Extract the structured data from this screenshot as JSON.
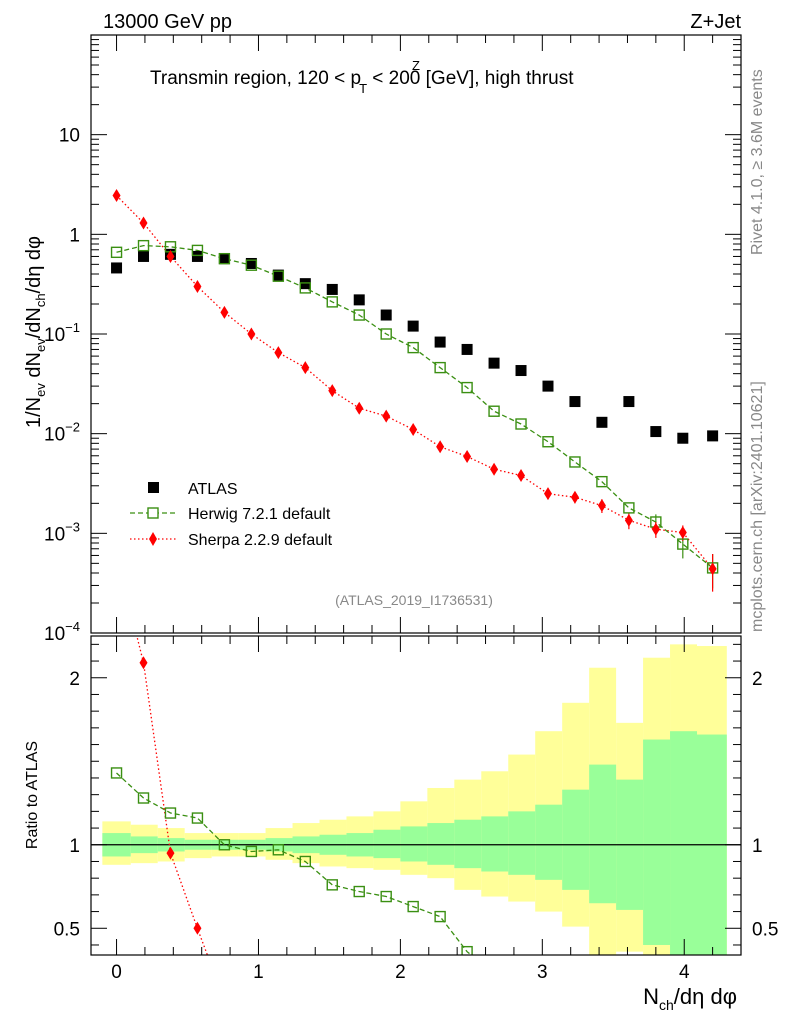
{
  "header": {
    "left": "13000 GeV pp",
    "right": "Z+Jet"
  },
  "side_labels": {
    "upper": "Rivet 4.1.0, ≥ 3.6M events",
    "lower": "mcplots.cern.ch [arXiv:2401.10621]"
  },
  "reference": "(ATLAS_2019_I1736531)",
  "colors": {
    "data": "#000000",
    "herwig": "#3a8f12",
    "sherpa": "#ff0000",
    "band_inner": "#99ff99",
    "band_outer": "#ffff99"
  },
  "chart_data": [
    {
      "type": "scatter",
      "panel": "main",
      "title_parts": {
        "pre": "Transmin region, 120 < p",
        "sup": "Z",
        "sub": "T",
        "post": " < 200 [GeV], high thrust"
      },
      "ylabel": "1/N_ev dN_ev/dN_ch/dη dφ",
      "yscale": "log",
      "ylim": [
        0.0001,
        100
      ],
      "xlim": [
        -0.18,
        4.4
      ],
      "yticks": [
        {
          "v": 10,
          "base": "10",
          "exp": ""
        },
        {
          "v": 1,
          "base": "1",
          "exp": ""
        },
        {
          "v": 0.1,
          "base": "10",
          "exp": "−1"
        },
        {
          "v": 0.01,
          "base": "10",
          "exp": "−2"
        },
        {
          "v": 0.001,
          "base": "10",
          "exp": "−3"
        },
        {
          "v": 0.0001,
          "base": "10",
          "exp": "−4"
        }
      ],
      "x": [
        0.0,
        0.19,
        0.38,
        0.57,
        0.76,
        0.95,
        1.14,
        1.33,
        1.52,
        1.71,
        1.9,
        2.09,
        2.28,
        2.47,
        2.66,
        2.85,
        3.04,
        3.23,
        3.42,
        3.61,
        3.8,
        3.99,
        4.2
      ],
      "series": [
        {
          "name": "ATLAS",
          "marker": "square-filled",
          "values": [
            0.46,
            0.6,
            0.63,
            0.6,
            0.57,
            0.51,
            0.39,
            0.32,
            0.28,
            0.22,
            0.155,
            0.12,
            0.083,
            0.07,
            0.051,
            0.043,
            0.03,
            0.021,
            0.013,
            0.021,
            0.0105,
            0.009,
            0.0095
          ]
        },
        {
          "name": "Herwig 7.2.1 default",
          "marker": "square-open",
          "line": "dashed",
          "values": [
            0.66,
            0.77,
            0.75,
            0.69,
            0.57,
            0.49,
            0.38,
            0.29,
            0.21,
            0.155,
            0.1,
            0.073,
            0.046,
            0.029,
            0.0168,
            0.0125,
            0.0083,
            0.0052,
            0.0033,
            0.0018,
            0.0013,
            0.00078,
            0.00045
          ],
          "errors": [
            0,
            0,
            0,
            0,
            0,
            0,
            0,
            0,
            0,
            0,
            0,
            0,
            0,
            0,
            0,
            0,
            0,
            0,
            0,
            0,
            0.00025,
            0.00022,
            0.00017
          ]
        },
        {
          "name": "Sherpa 2.2.9 default",
          "marker": "diamond",
          "line": "dotted",
          "values": [
            2.45,
            1.3,
            0.6,
            0.3,
            0.165,
            0.1,
            0.065,
            0.046,
            0.027,
            0.018,
            0.015,
            0.011,
            0.0074,
            0.0059,
            0.0044,
            0.0038,
            0.0025,
            0.0023,
            0.0019,
            0.00135,
            0.0011,
            0.00102,
            0.00044
          ],
          "errors": [
            0,
            0,
            0,
            0,
            0,
            0,
            0,
            0,
            0,
            0,
            0,
            0,
            0,
            0,
            0,
            0,
            0.0003,
            0.0003,
            0.0003,
            0.00025,
            0.0002,
            0.00018,
            0.00018
          ]
        }
      ]
    },
    {
      "type": "scatter",
      "panel": "ratio",
      "ylabel": "Ratio to ATLAS",
      "xlabel": "N_ch/dη dφ",
      "ylim": [
        0.34,
        2.25
      ],
      "xticks": [
        0,
        1,
        2,
        3,
        4
      ],
      "yticks": [
        0.5,
        1,
        2
      ],
      "bin_edges": [
        -0.1,
        0.1,
        0.29,
        0.48,
        0.67,
        0.86,
        1.05,
        1.24,
        1.43,
        1.62,
        1.81,
        2.0,
        2.19,
        2.38,
        2.57,
        2.76,
        2.95,
        3.14,
        3.33,
        3.52,
        3.71,
        3.9,
        4.09,
        4.3
      ],
      "band_inner": {
        "low": [
          0.93,
          0.95,
          0.96,
          0.97,
          0.97,
          0.97,
          0.96,
          0.95,
          0.94,
          0.93,
          0.92,
          0.9,
          0.88,
          0.86,
          0.84,
          0.82,
          0.79,
          0.73,
          0.65,
          0.61,
          0.4,
          0.34,
          0.34
        ],
        "high": [
          1.07,
          1.05,
          1.04,
          1.03,
          1.03,
          1.03,
          1.04,
          1.05,
          1.06,
          1.07,
          1.09,
          1.11,
          1.13,
          1.15,
          1.17,
          1.2,
          1.24,
          1.33,
          1.48,
          1.39,
          1.63,
          1.68,
          1.66
        ]
      },
      "band_outer": {
        "low": [
          0.88,
          0.89,
          0.9,
          0.92,
          0.93,
          0.93,
          0.91,
          0.89,
          0.87,
          0.86,
          0.85,
          0.82,
          0.8,
          0.73,
          0.69,
          0.66,
          0.6,
          0.51,
          0.34,
          0.36,
          0.34,
          0.34,
          0.34
        ],
        "high": [
          1.14,
          1.12,
          1.1,
          1.07,
          1.07,
          1.07,
          1.1,
          1.13,
          1.15,
          1.17,
          1.2,
          1.26,
          1.34,
          1.39,
          1.44,
          1.54,
          1.68,
          1.85,
          2.06,
          1.73,
          2.12,
          2.2,
          2.19
        ]
      },
      "x": [
        0.0,
        0.19,
        0.38,
        0.57,
        0.76,
        0.95,
        1.14,
        1.33,
        1.52,
        1.71,
        1.9,
        2.09,
        2.28,
        2.47
      ],
      "series": [
        {
          "name": "Herwig 7.2.1 default",
          "line": "dashed",
          "values": [
            1.43,
            1.28,
            1.19,
            1.16,
            1.0,
            0.96,
            0.97,
            0.9,
            0.76,
            0.72,
            0.69,
            0.63,
            0.57,
            0.36
          ]
        },
        {
          "name": "Sherpa 2.2.9 default",
          "line": "dotted",
          "values": [
            null,
            2.09,
            0.95,
            0.5
          ],
          "line_ends": [
            [
              0.14,
              2.26
            ],
            [
              0.64,
              0.34
            ]
          ]
        }
      ]
    }
  ]
}
